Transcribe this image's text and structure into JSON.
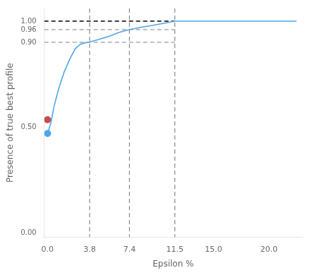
{
  "chart_data": {
    "type": "line",
    "xlabel": "Epsilon %",
    "ylabel": "Presence of true best profile",
    "series": [
      {
        "type": "scatter",
        "marker": "circle",
        "color": "#c0504d",
        "x": [
          0.0
        ],
        "values": [
          0.535
        ]
      },
      {
        "type": "scatter",
        "marker": "circle",
        "color": "#4da6e8",
        "x": [
          0.0
        ],
        "values": [
          0.47
        ]
      },
      {
        "type": "line",
        "line_style": "solid",
        "color": "#4da6e8",
        "x": [
          0.0,
          0.3,
          0.6,
          1.0,
          1.5,
          2.0,
          2.5,
          3.0,
          3.5,
          3.8,
          4.5,
          5.5,
          6.5,
          7.4,
          8.5,
          9.5,
          10.5,
          11.5,
          13.0,
          15.0,
          17.0,
          20.0,
          22.5
        ],
        "values": [
          0.47,
          0.52,
          0.6,
          0.68,
          0.76,
          0.82,
          0.87,
          0.892,
          0.899,
          0.902,
          0.912,
          0.928,
          0.948,
          0.96,
          0.972,
          0.98,
          0.99,
          1.0,
          1.0,
          1.0,
          1.0,
          1.0,
          1.0
        ]
      },
      {
        "type": "line",
        "line_style": "dashed",
        "color": "#aaaaaa",
        "x": [
          -0.3,
          11.5
        ],
        "values": [
          0.9,
          0.9
        ]
      },
      {
        "type": "line",
        "line_style": "dashed",
        "color": "#aaaaaa",
        "x": [
          -0.3,
          11.5
        ],
        "values": [
          0.96,
          0.96
        ]
      },
      {
        "type": "line",
        "line_style": "dashed",
        "color": "black",
        "x": [
          -0.3,
          11.5
        ],
        "values": [
          1.0,
          1.0
        ]
      }
    ],
    "vlines": {
      "values": [
        3.8,
        7.4,
        11.5
      ],
      "color": "#888888",
      "line_style": "dashed"
    },
    "xlim": [
      -0.3,
      23.0
    ],
    "ylim": [
      -0.02,
      1.06
    ],
    "xticks": [
      {
        "value": 0.0,
        "label": "0.0"
      },
      3.8,
      7.4,
      11.5,
      {
        "value": 15.0,
        "label": "15.0"
      },
      {
        "value": 20.0,
        "label": "20.0"
      }
    ],
    "yticks": [
      {
        "value": 0.0,
        "label": "0.00"
      },
      {
        "value": 0.5,
        "label": "0.50"
      },
      {
        "value": 0.9,
        "label": "0.90"
      },
      {
        "value": 0.96,
        "label": "0.96"
      },
      {
        "value": 1.0,
        "label": "1.00"
      }
    ],
    "grid": false
  }
}
